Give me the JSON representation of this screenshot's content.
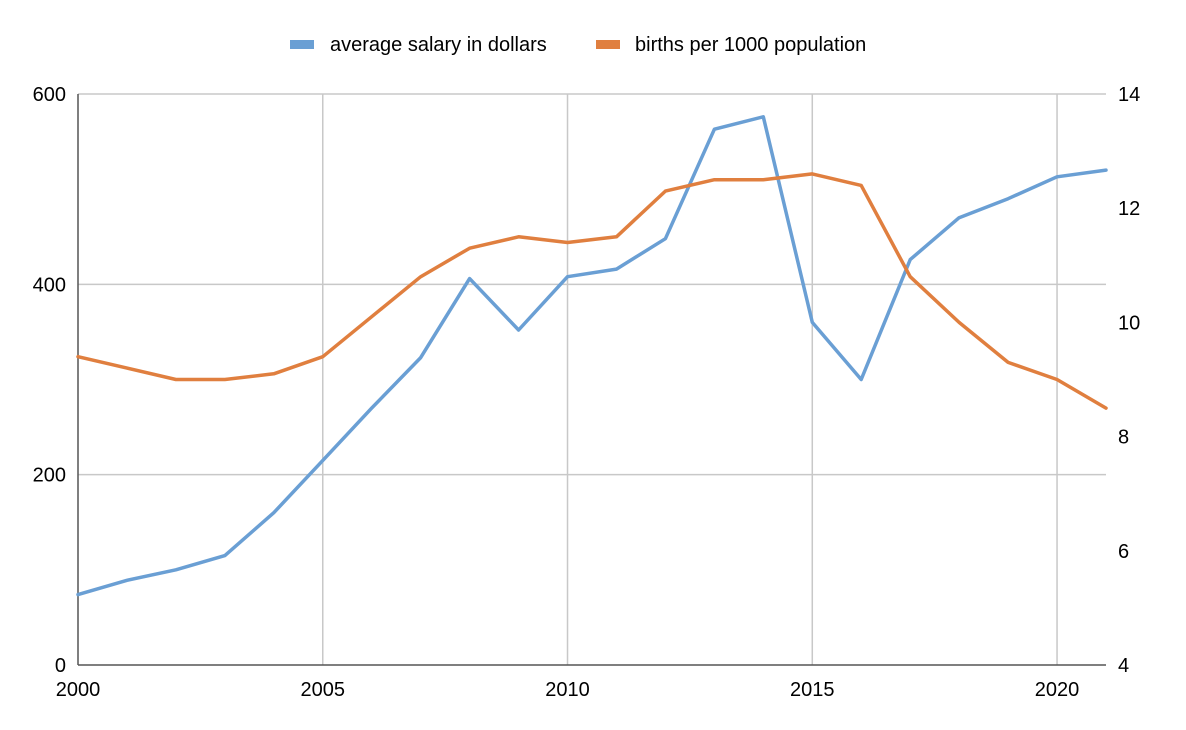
{
  "chart_data": {
    "type": "line",
    "title": "",
    "xlabel": "",
    "ylabel": "",
    "x": [
      2000,
      2001,
      2002,
      2003,
      2004,
      2005,
      2006,
      2007,
      2008,
      2009,
      2010,
      2011,
      2012,
      2013,
      2014,
      2015,
      2016,
      2017,
      2018,
      2019,
      2020,
      2021
    ],
    "xlim": [
      2000,
      2021
    ],
    "x_ticks": [
      "2000",
      "2005",
      "2010",
      "2015",
      "2020"
    ],
    "ylim_left": [
      0,
      600
    ],
    "y_ticks_left": [
      "0",
      "200",
      "400",
      "600"
    ],
    "ylim_right": [
      4,
      14
    ],
    "y_ticks_right": [
      "4",
      "6",
      "8",
      "10",
      "12",
      "14"
    ],
    "grid": true,
    "legend_position": "top-center",
    "series": [
      {
        "name": "average salary in dollars",
        "axis": "left",
        "color": "#6a9fd4",
        "values": [
          74,
          89,
          100,
          115,
          160,
          215,
          270,
          323,
          406,
          352,
          408,
          416,
          448,
          563,
          576,
          360,
          300,
          426,
          470,
          490,
          513,
          520
        ]
      },
      {
        "name": "births per 1000 population",
        "axis": "right",
        "color": "#e07f3f",
        "values": [
          9.4,
          9.2,
          9.0,
          9.0,
          9.1,
          9.4,
          10.1,
          10.8,
          11.3,
          11.5,
          11.4,
          11.5,
          12.3,
          12.5,
          12.5,
          12.6,
          12.4,
          10.8,
          10.0,
          9.3,
          9.0,
          8.5
        ]
      }
    ]
  }
}
